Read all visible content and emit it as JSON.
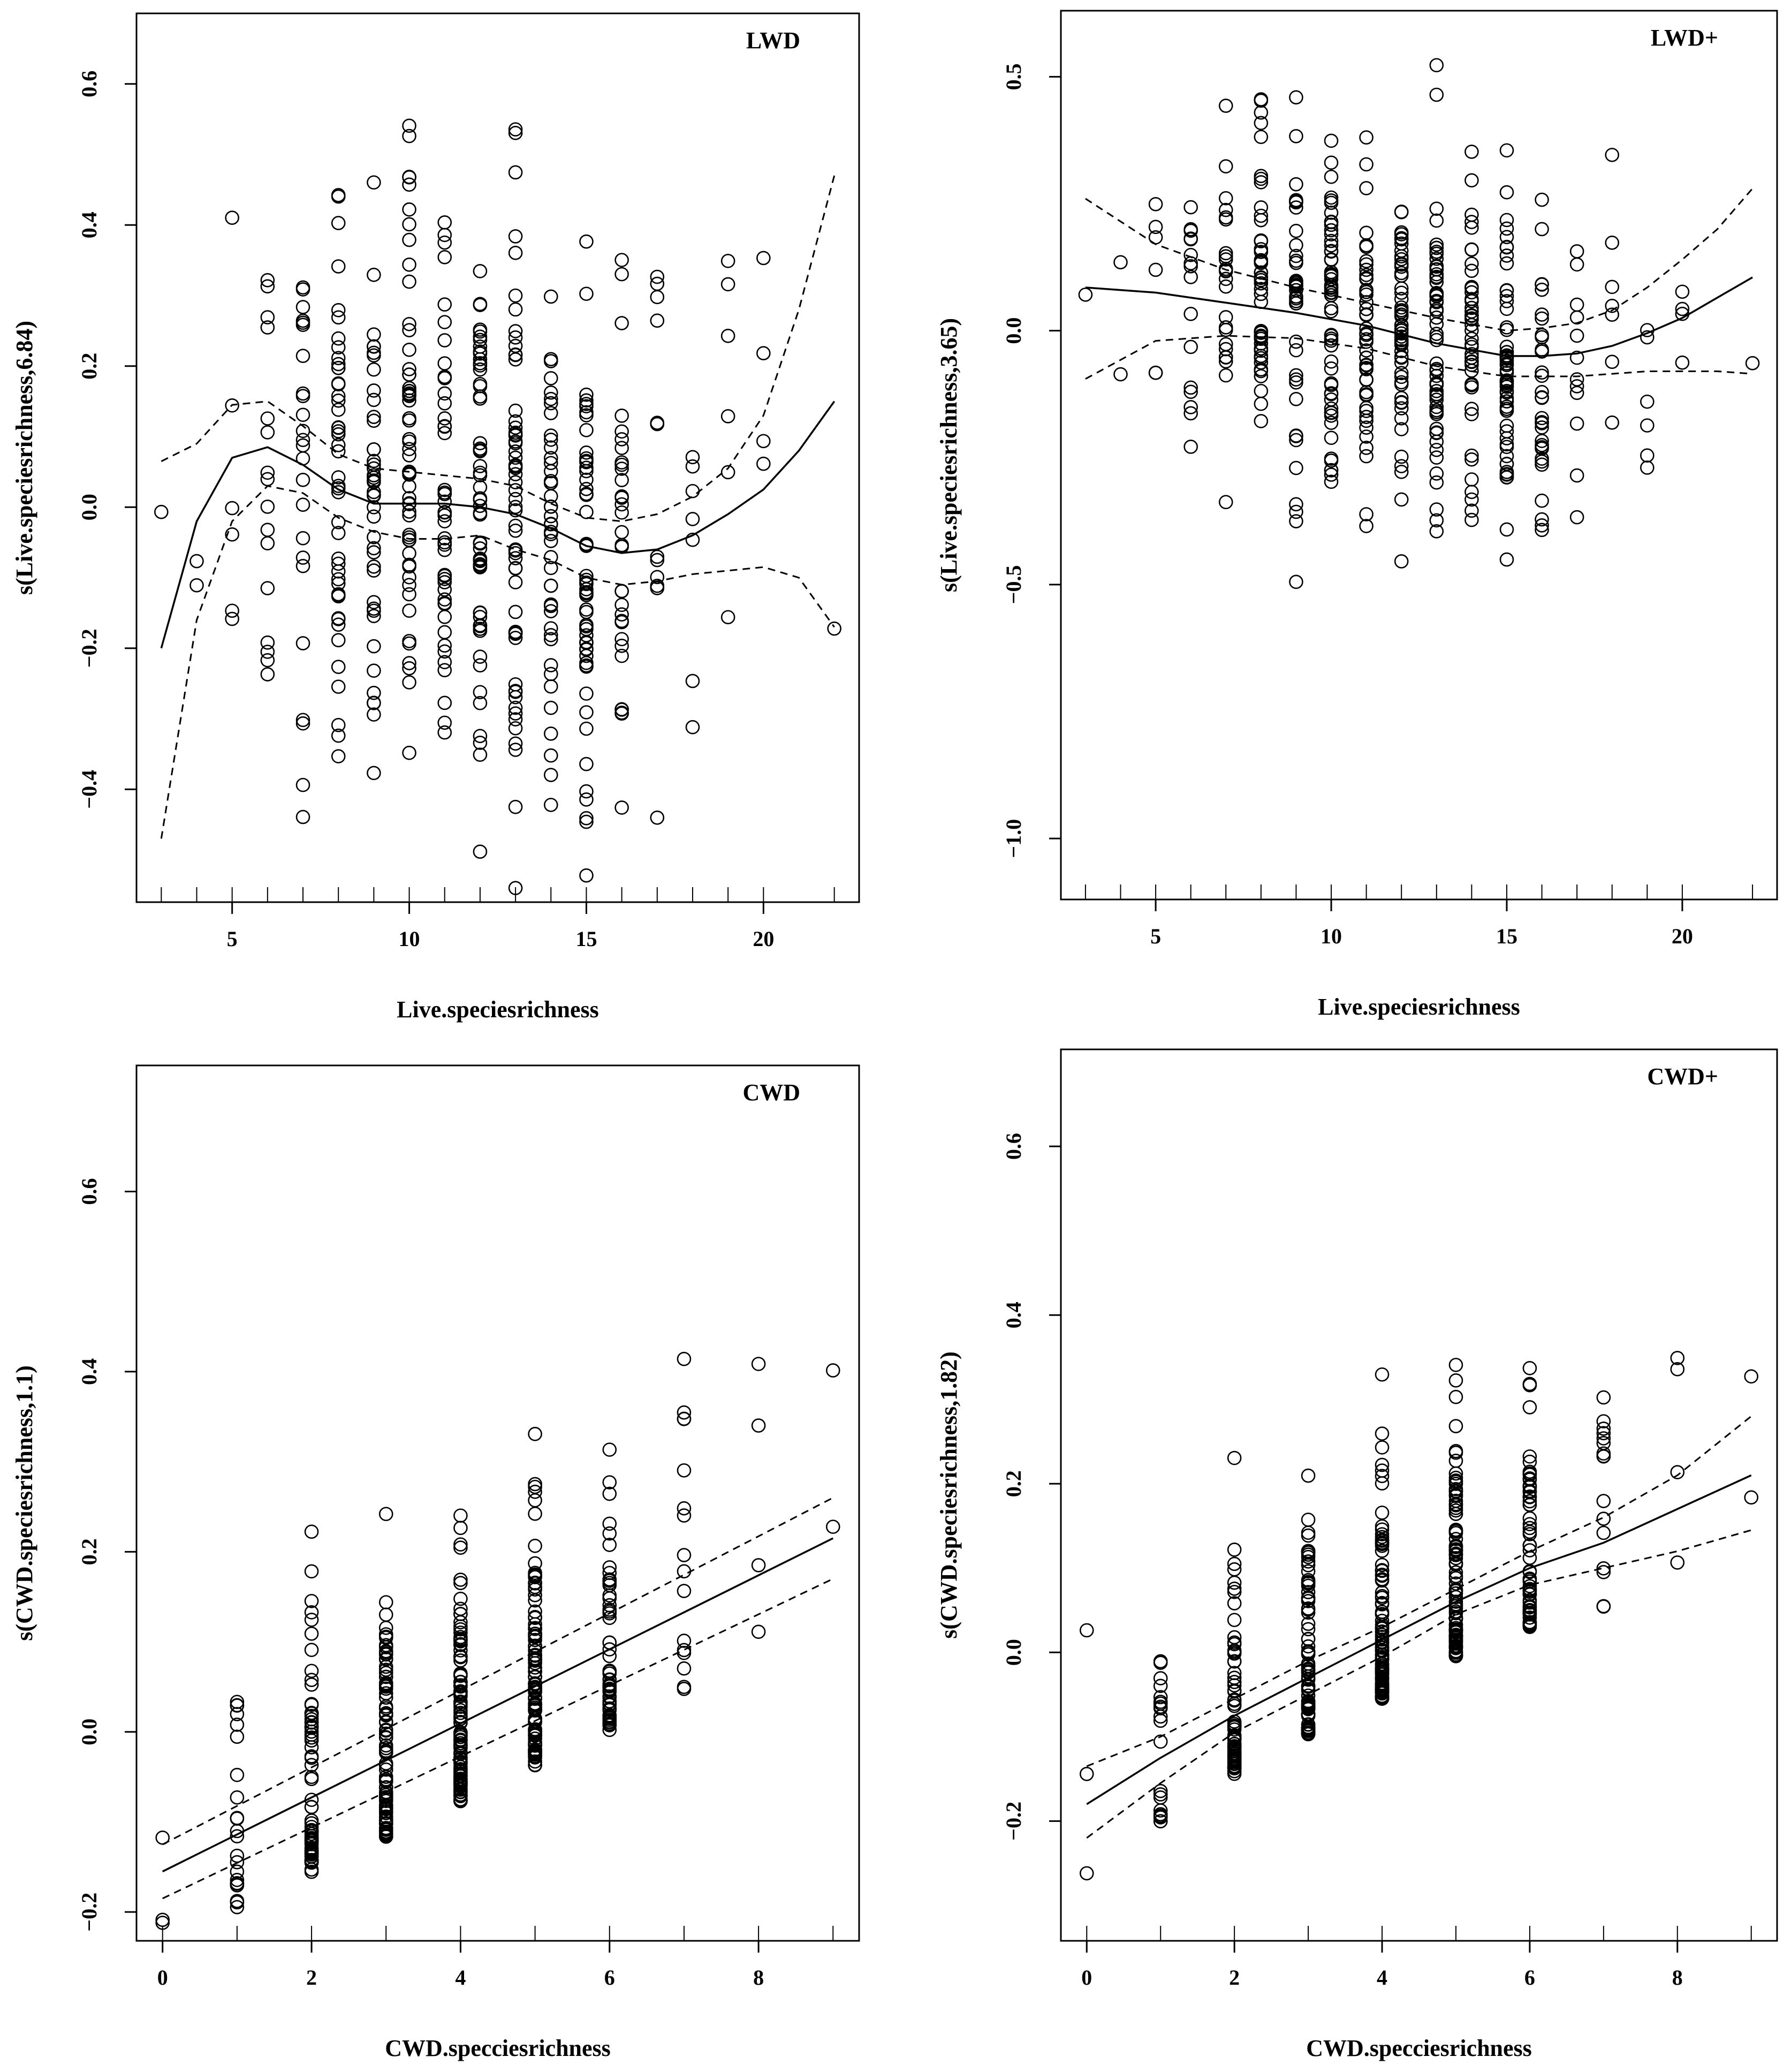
{
  "chart_data": [
    {
      "type": "scatter",
      "panel_label": "LWD",
      "xlabel": "Live.speciesrichness",
      "ylabel": "s(Live.speciesrichness,6.84)",
      "xlim": [
        2.3,
        22.7
      ],
      "ylim": [
        -0.56,
        0.7
      ],
      "xticks": [
        5,
        10,
        15,
        20
      ],
      "yticks": [
        -0.4,
        -0.2,
        0.0,
        0.2,
        0.4,
        0.6
      ],
      "ytick_labels": [
        "−0.4",
        "−0.2",
        "0.0",
        "0.2",
        "0.4",
        "0.6"
      ],
      "rug": [
        3,
        4,
        5,
        6,
        7,
        8,
        9,
        10,
        11,
        12,
        13,
        14,
        15,
        16,
        17,
        18,
        19,
        20,
        22
      ],
      "smooth": {
        "x": [
          3,
          4,
          5,
          6,
          7,
          8,
          9,
          10,
          11,
          12,
          13,
          14,
          15,
          16,
          17,
          18,
          19,
          20,
          21,
          22
        ],
        "fit": [
          -0.2,
          -0.02,
          0.07,
          0.085,
          0.06,
          0.025,
          0.005,
          0.005,
          0.005,
          0.0,
          -0.01,
          -0.03,
          -0.055,
          -0.065,
          -0.06,
          -0.04,
          -0.01,
          0.025,
          0.08,
          0.15
        ],
        "upper": [
          0.065,
          0.09,
          0.145,
          0.15,
          0.115,
          0.075,
          0.055,
          0.05,
          0.045,
          0.04,
          0.03,
          0.005,
          -0.015,
          -0.02,
          -0.01,
          0.015,
          0.055,
          0.13,
          0.28,
          0.47
        ],
        "lower": [
          -0.47,
          -0.16,
          -0.02,
          0.03,
          0.02,
          -0.015,
          -0.035,
          -0.045,
          -0.045,
          -0.04,
          -0.06,
          -0.075,
          -0.1,
          -0.11,
          -0.105,
          -0.095,
          -0.09,
          -0.085,
          -0.1,
          -0.17
        ]
      }
    },
    {
      "type": "scatter",
      "panel_label": "LWD+",
      "xlabel": "Live.speciesrichness",
      "ylabel": "s(Live.speciesrichness,3.65)",
      "xlim": [
        2.3,
        22.7
      ],
      "ylim": [
        -1.12,
        0.63
      ],
      "xticks": [
        5,
        10,
        15,
        20
      ],
      "yticks": [
        -1.0,
        -0.5,
        0.0,
        0.5
      ],
      "ytick_labels": [
        "−1.0",
        "−0.5",
        "0.0",
        "0.5"
      ],
      "rug": [
        3,
        4,
        5,
        6,
        7,
        8,
        9,
        10,
        11,
        12,
        13,
        14,
        15,
        16,
        17,
        18,
        19,
        20,
        22
      ],
      "smooth": {
        "x": [
          3,
          5,
          7,
          9,
          11,
          13,
          15,
          16,
          17,
          18,
          19,
          20,
          21,
          22
        ],
        "fit": [
          0.085,
          0.075,
          0.055,
          0.035,
          0.01,
          -0.025,
          -0.05,
          -0.05,
          -0.045,
          -0.03,
          -0.005,
          0.025,
          0.065,
          0.105
        ],
        "upper": [
          0.26,
          0.17,
          0.12,
          0.085,
          0.055,
          0.025,
          0.0,
          0.005,
          0.015,
          0.04,
          0.085,
          0.14,
          0.2,
          0.28
        ],
        "lower": [
          -0.095,
          -0.02,
          -0.01,
          -0.015,
          -0.035,
          -0.07,
          -0.09,
          -0.09,
          -0.09,
          -0.085,
          -0.08,
          -0.08,
          -0.08,
          -0.085
        ]
      }
    },
    {
      "type": "scatter",
      "panel_label": "CWD",
      "xlabel": "CWD.specciesrichness",
      "ylabel": "s(CWD.speciesrichness,1.1)",
      "xlim": [
        -0.35,
        9.35
      ],
      "ylim": [
        -0.232,
        0.74
      ],
      "xticks": [
        0,
        2,
        4,
        6,
        8
      ],
      "yticks": [
        -0.2,
        0.0,
        0.2,
        0.4,
        0.6
      ],
      "ytick_labels": [
        "−0.2",
        "0.0",
        "0.2",
        "0.4",
        "0.6"
      ],
      "rug": [
        0,
        1,
        2,
        3,
        4,
        5,
        6,
        7,
        8,
        9
      ],
      "smooth": {
        "x": [
          0,
          9
        ],
        "fit": [
          -0.155,
          0.215
        ],
        "upper": [
          -0.125,
          0.26
        ],
        "lower": [
          -0.185,
          0.17
        ]
      }
    },
    {
      "type": "scatter",
      "panel_label": "CWD+",
      "xlabel": "CWD.specciesrichness",
      "ylabel": "s(CWD.speciesrichness,1.82)",
      "xlim": [
        -0.35,
        9.35
      ],
      "ylim": [
        -0.342,
        0.715
      ],
      "xticks": [
        0,
        2,
        4,
        6,
        8
      ],
      "yticks": [
        -0.2,
        0.0,
        0.2,
        0.4,
        0.6
      ],
      "ytick_labels": [
        "−0.2",
        "0.0",
        "0.2",
        "0.4",
        "0.6"
      ],
      "rug": [
        0,
        1,
        2,
        3,
        4,
        5,
        6,
        7,
        8,
        9
      ],
      "smooth": {
        "x": [
          0,
          1,
          2,
          3,
          4,
          5,
          6,
          7,
          8,
          9
        ],
        "fit": [
          -0.18,
          -0.125,
          -0.075,
          -0.03,
          0.015,
          0.06,
          0.1,
          0.13,
          0.17,
          0.21
        ],
        "upper": [
          -0.135,
          -0.1,
          -0.055,
          -0.01,
          0.03,
          0.075,
          0.12,
          0.16,
          0.21,
          0.28
        ],
        "lower": [
          -0.22,
          -0.155,
          -0.095,
          -0.05,
          -0.005,
          0.045,
          0.08,
          0.1,
          0.12,
          0.145
        ]
      }
    }
  ]
}
